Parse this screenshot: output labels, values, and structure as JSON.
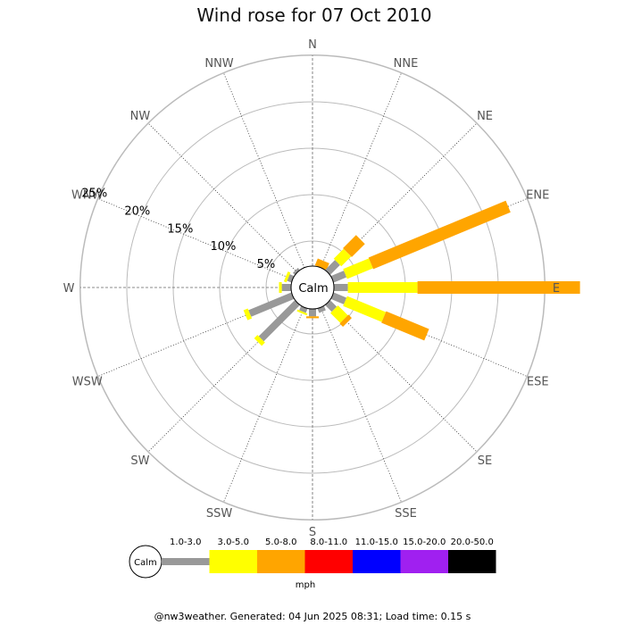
{
  "chart_data": {
    "type": "wind-rose",
    "title": "Wind rose for 07 Oct 2010",
    "calm_label": "Calm",
    "directions": [
      "N",
      "NNE",
      "NE",
      "ENE",
      "E",
      "ESE",
      "SE",
      "SSE",
      "S",
      "SSW",
      "SW",
      "WSW",
      "W",
      "WNW",
      "NW",
      "NNW"
    ],
    "rings": [
      5,
      10,
      15,
      20,
      25
    ],
    "ring_labels": [
      "5%",
      "10%",
      "15%",
      "20%",
      "25%"
    ],
    "percent_max": 25,
    "speed_bins": [
      {
        "label": "1.0-3.0",
        "color": "#999999"
      },
      {
        "label": "3.0-5.0",
        "color": "#ffff00"
      },
      {
        "label": "5.0-8.0",
        "color": "#ffa500"
      },
      {
        "label": "8.0-11.0",
        "color": "#ff0000"
      },
      {
        "label": "11.0-15.0",
        "color": "#0000ff"
      },
      {
        "label": "15.0-20.0",
        "color": "#a020f0"
      },
      {
        "label": "20.0-50.0",
        "color": "#000000"
      }
    ],
    "speed_unit": "mph",
    "series": [
      {
        "direction": "N",
        "values": [
          0,
          0,
          0,
          0,
          0,
          0,
          0
        ]
      },
      {
        "direction": "NNE",
        "values": [
          0,
          0,
          0.8,
          0,
          0,
          0,
          0
        ]
      },
      {
        "direction": "NE",
        "values": [
          1.5,
          1.5,
          2.0,
          0,
          0,
          0,
          0
        ]
      },
      {
        "direction": "ENE",
        "values": [
          1.5,
          3.0,
          16.0,
          0,
          0,
          0,
          0
        ]
      },
      {
        "direction": "E",
        "values": [
          1.5,
          7.5,
          17.5,
          0,
          0,
          0,
          0
        ]
      },
      {
        "direction": "ESE",
        "values": [
          1.5,
          4.5,
          5.0,
          0,
          0,
          0,
          0
        ]
      },
      {
        "direction": "SE",
        "values": [
          1.0,
          1.5,
          0.5,
          0,
          0,
          0,
          0
        ]
      },
      {
        "direction": "SSE",
        "values": [
          0.5,
          0,
          0,
          0,
          0,
          0,
          0
        ]
      },
      {
        "direction": "S",
        "values": [
          0.8,
          0,
          0.2,
          0,
          0,
          0,
          0
        ]
      },
      {
        "direction": "SSW",
        "values": [
          0.5,
          0.2,
          0,
          0,
          0,
          0,
          0
        ]
      },
      {
        "direction": "SW",
        "values": [
          5.5,
          0.5,
          0,
          0,
          0,
          0,
          0
        ]
      },
      {
        "direction": "WSW",
        "values": [
          5.0,
          0.5,
          0,
          0,
          0,
          0,
          0
        ]
      },
      {
        "direction": "W",
        "values": [
          1.0,
          0.3,
          0,
          0,
          0,
          0,
          0
        ]
      },
      {
        "direction": "WNW",
        "values": [
          0.5,
          0.3,
          0,
          0,
          0,
          0,
          0
        ]
      },
      {
        "direction": "NW",
        "values": [
          0.3,
          0,
          0,
          0,
          0,
          0,
          0
        ]
      },
      {
        "direction": "NNW",
        "values": [
          0,
          0,
          0,
          0,
          0,
          0,
          0
        ]
      }
    ]
  },
  "footer": "@nw3weather. Generated: 04 Jun 2025 08:31; Load time: 0.15 s"
}
